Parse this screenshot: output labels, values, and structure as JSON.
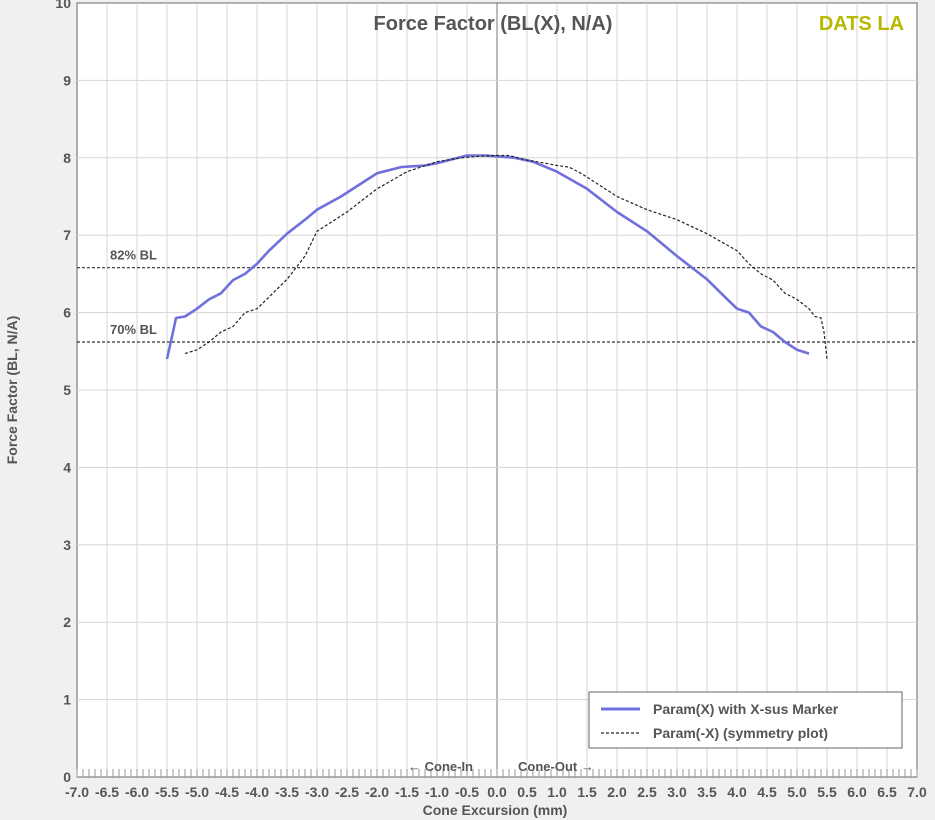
{
  "chart_data": {
    "type": "line",
    "title": "Force Factor (BL(X), N/A)",
    "brand": "DATS LA",
    "xlabel": "Cone Excursion (mm)",
    "ylabel": "Force Factor (BL, N/A)",
    "xlim": [
      -7.0,
      7.0
    ],
    "ylim": [
      0,
      10
    ],
    "x_ticks": [
      "-7.0",
      "-6.5",
      "-6.0",
      "-5.5",
      "-5.0",
      "-4.5",
      "-4.0",
      "-3.5",
      "-3.0",
      "-2.5",
      "-2.0",
      "-1.5",
      "-1.0",
      "-0.5",
      "0.0",
      "0.5",
      "1.0",
      "1.5",
      "2.0",
      "2.5",
      "3.0",
      "3.5",
      "4.0",
      "4.5",
      "5.0",
      "5.5",
      "6.0",
      "6.5",
      "7.0"
    ],
    "y_ticks": [
      "0",
      "1",
      "2",
      "3",
      "4",
      "5",
      "6",
      "7",
      "8",
      "9",
      "10"
    ],
    "grid": true,
    "legend_position": "bottom-right",
    "colors": {
      "param_x": "#7070dd",
      "param_neg_x": "#222222",
      "brand": "#b8b800"
    },
    "reference_lines": [
      {
        "label": "82% BL",
        "y": 6.58
      },
      {
        "label": "70% BL",
        "y": 5.62
      }
    ],
    "annotations": {
      "cone_in": "← Cone-In",
      "cone_out": "Cone-Out →"
    },
    "series": [
      {
        "name": "Param(X) with X-sus Marker",
        "style": "solid",
        "x": [
          -5.5,
          -5.4,
          -5.35,
          -5.2,
          -5.0,
          -4.8,
          -4.6,
          -4.4,
          -4.2,
          -4.0,
          -3.8,
          -3.5,
          -3.2,
          -3.0,
          -2.6,
          -2.2,
          -2.0,
          -1.6,
          -1.2,
          -1.0,
          -0.8,
          -0.5,
          -0.2,
          0.0,
          0.3,
          0.6,
          1.0,
          1.5,
          2.0,
          2.5,
          3.0,
          3.5,
          3.8,
          4.0,
          4.2,
          4.4,
          4.6,
          4.8,
          5.0,
          5.2
        ],
        "y": [
          5.4,
          5.75,
          5.93,
          5.95,
          6.05,
          6.17,
          6.25,
          6.42,
          6.5,
          6.63,
          6.8,
          7.02,
          7.2,
          7.33,
          7.5,
          7.7,
          7.8,
          7.88,
          7.9,
          7.93,
          7.97,
          8.03,
          8.03,
          8.02,
          8.0,
          7.95,
          7.82,
          7.6,
          7.3,
          7.05,
          6.73,
          6.43,
          6.2,
          6.05,
          6.0,
          5.82,
          5.75,
          5.62,
          5.52,
          5.47
        ]
      },
      {
        "name": "Param(-X) (symmetry plot)",
        "style": "dashed",
        "x": [
          -5.2,
          -5.0,
          -4.8,
          -4.6,
          -4.4,
          -4.2,
          -4.0,
          -3.8,
          -3.5,
          -3.2,
          -3.0,
          -2.5,
          -2.0,
          -1.5,
          -1.0,
          -0.6,
          -0.3,
          0.0,
          0.2,
          0.5,
          0.8,
          1.0,
          1.2,
          1.4,
          1.6,
          2.0,
          2.5,
          3.0,
          3.5,
          4.0,
          4.2,
          4.4,
          4.6,
          4.8,
          5.0,
          5.2,
          5.3,
          5.4,
          5.45,
          5.5
        ],
        "y": [
          5.47,
          5.52,
          5.62,
          5.75,
          5.82,
          6.0,
          6.05,
          6.2,
          6.43,
          6.73,
          7.05,
          7.3,
          7.6,
          7.82,
          7.95,
          8.0,
          8.02,
          8.03,
          8.03,
          7.97,
          7.93,
          7.9,
          7.88,
          7.8,
          7.7,
          7.5,
          7.33,
          7.2,
          7.02,
          6.8,
          6.63,
          6.5,
          6.42,
          6.25,
          6.17,
          6.05,
          5.95,
          5.93,
          5.75,
          5.4
        ]
      }
    ]
  }
}
